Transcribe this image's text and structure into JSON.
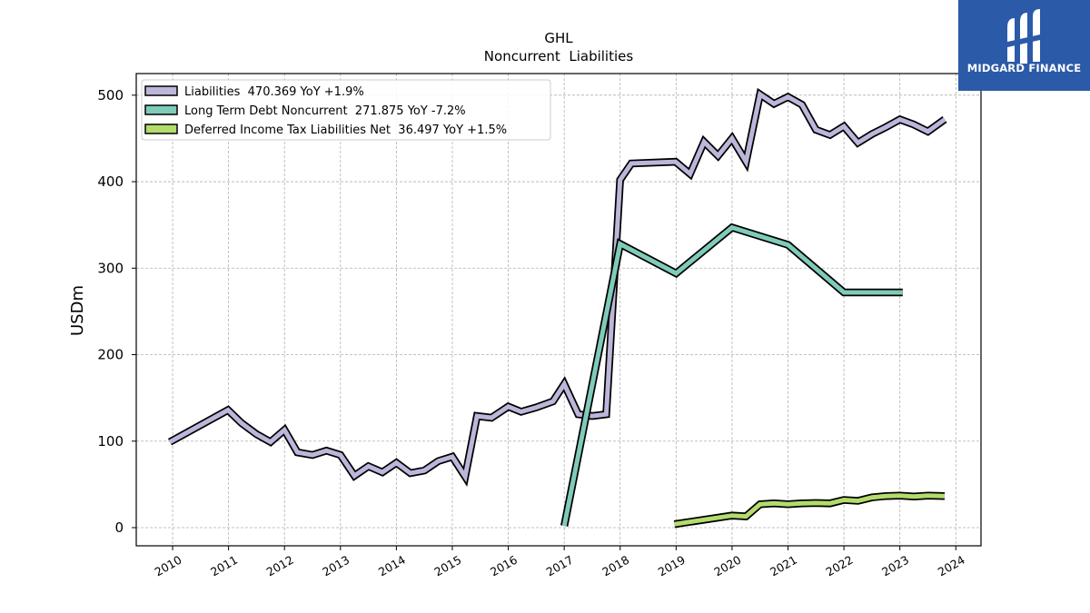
{
  "chart_data": {
    "type": "line",
    "title": "GHL",
    "subtitle": "Noncurrent  Liabilities",
    "ylabel": "USDm",
    "xlabel": "",
    "xlim": [
      2009.35,
      2024.45
    ],
    "ylim": [
      -21,
      525
    ],
    "x_ticks": [
      2010,
      2011,
      2012,
      2013,
      2014,
      2015,
      2016,
      2017,
      2018,
      2019,
      2020,
      2021,
      2022,
      2023,
      2024
    ],
    "x_tick_labels": [
      "2010",
      "2011",
      "2012",
      "2013",
      "2014",
      "2015",
      "2016",
      "2017",
      "2018",
      "2019",
      "2020",
      "2021",
      "2022",
      "2023",
      "2024"
    ],
    "y_ticks": [
      0,
      100,
      200,
      300,
      400,
      500
    ],
    "y_tick_labels": [
      "0",
      "100",
      "200",
      "300",
      "400",
      "500"
    ],
    "grid": true,
    "legend_position": "top-left",
    "series": [
      {
        "name": "Liabilities  470.369 YoY +1.9%",
        "color": "#bcb6da",
        "points": [
          [
            2009.95,
            99
          ],
          [
            2010.99,
            136
          ],
          [
            2011.23,
            121
          ],
          [
            2011.5,
            108
          ],
          [
            2011.75,
            99
          ],
          [
            2012.0,
            113
          ],
          [
            2012.23,
            87
          ],
          [
            2012.5,
            84
          ],
          [
            2012.75,
            89
          ],
          [
            2013.0,
            84
          ],
          [
            2013.25,
            60
          ],
          [
            2013.5,
            71
          ],
          [
            2013.75,
            64
          ],
          [
            2014.0,
            75
          ],
          [
            2014.25,
            63
          ],
          [
            2014.5,
            66
          ],
          [
            2014.75,
            77
          ],
          [
            2015.0,
            82
          ],
          [
            2015.23,
            59
          ],
          [
            2015.44,
            129
          ],
          [
            2015.7,
            127
          ],
          [
            2016.0,
            140
          ],
          [
            2016.23,
            134
          ],
          [
            2016.5,
            139
          ],
          [
            2016.8,
            146
          ],
          [
            2017.0,
            166
          ],
          [
            2017.25,
            131
          ],
          [
            2017.5,
            129
          ],
          [
            2017.75,
            131
          ],
          [
            2018.0,
            402
          ],
          [
            2018.2,
            421
          ],
          [
            2018.99,
            423
          ],
          [
            2019.25,
            409
          ],
          [
            2019.5,
            446
          ],
          [
            2019.75,
            430
          ],
          [
            2020.0,
            450
          ],
          [
            2020.25,
            423
          ],
          [
            2020.5,
            501
          ],
          [
            2020.75,
            490
          ],
          [
            2021.0,
            498
          ],
          [
            2021.25,
            489
          ],
          [
            2021.5,
            460
          ],
          [
            2021.75,
            454
          ],
          [
            2022.0,
            464
          ],
          [
            2022.25,
            445
          ],
          [
            2022.5,
            455
          ],
          [
            2022.75,
            463
          ],
          [
            2023.0,
            472
          ],
          [
            2023.25,
            466
          ],
          [
            2023.5,
            458
          ],
          [
            2023.8,
            472
          ]
        ]
      },
      {
        "name": "Long Term Debt Noncurrent  271.875 YoY -7.2%",
        "color": "#7fcbb9",
        "points": [
          [
            2017.0,
            2
          ],
          [
            2018.0,
            328
          ],
          [
            2019.0,
            294
          ],
          [
            2020.0,
            347
          ],
          [
            2021.0,
            327
          ],
          [
            2022.0,
            272
          ],
          [
            2023.05,
            272
          ]
        ]
      },
      {
        "name": "Deferred Income Tax Liabilities Net  36.497 YoY +1.5%",
        "color": "#b3dc6c",
        "points": [
          [
            2018.97,
            4
          ],
          [
            2020.0,
            14
          ],
          [
            2020.25,
            13
          ],
          [
            2020.5,
            27
          ],
          [
            2020.75,
            28
          ],
          [
            2021.0,
            27
          ],
          [
            2021.25,
            28
          ],
          [
            2021.5,
            28.5
          ],
          [
            2021.75,
            28
          ],
          [
            2022.0,
            32
          ],
          [
            2022.25,
            31
          ],
          [
            2022.5,
            35
          ],
          [
            2022.75,
            36.5
          ],
          [
            2023.0,
            37
          ],
          [
            2023.25,
            36
          ],
          [
            2023.5,
            37
          ],
          [
            2023.8,
            36.5
          ]
        ]
      }
    ]
  },
  "logo": {
    "text": "MIDGARD FINANCE",
    "icon": "midgard-logo-icon"
  }
}
